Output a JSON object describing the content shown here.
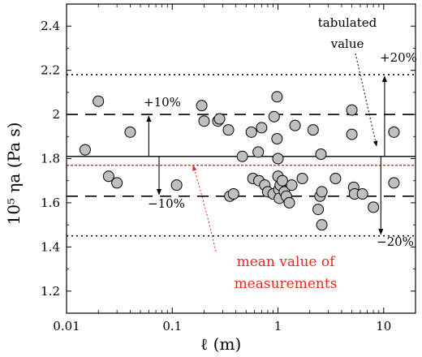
{
  "chart_data": {
    "type": "scatter",
    "xscale": "log",
    "xlim": [
      0.01,
      20
    ],
    "ylim": [
      1.1,
      2.5
    ],
    "xticks": [
      0.01,
      0.1,
      1,
      10
    ],
    "xtick_labels": [
      "0.01",
      "0.1",
      "1",
      "10"
    ],
    "yticks": [
      1.2,
      1.4,
      1.6,
      1.8,
      2.0,
      2.2,
      2.4
    ],
    "ytick_labels": [
      "1.2",
      "1.4",
      "1.6",
      "1.8",
      "2",
      "2.2",
      "2.4"
    ],
    "xlabel": "ℓ (m)",
    "ylabel": "10⁵ ηa (Pa s)",
    "grid": false,
    "tabulated_value": 1.81,
    "mean_value": 1.77,
    "band_10pct": [
      1.63,
      2.0
    ],
    "band_20pct": [
      1.45,
      2.18
    ],
    "colors": {
      "points": "#bfbfbf",
      "mean_line": "#e8281e",
      "lines": "#000000"
    },
    "points": [
      [
        0.015,
        1.84
      ],
      [
        0.02,
        2.06
      ],
      [
        0.025,
        1.72
      ],
      [
        0.03,
        1.69
      ],
      [
        0.04,
        1.92
      ],
      [
        0.11,
        1.68
      ],
      [
        0.19,
        2.04
      ],
      [
        0.2,
        1.97
      ],
      [
        0.27,
        1.97
      ],
      [
        0.28,
        1.98
      ],
      [
        0.34,
        1.93
      ],
      [
        0.35,
        1.63
      ],
      [
        0.38,
        1.64
      ],
      [
        0.46,
        1.81
      ],
      [
        0.56,
        1.92
      ],
      [
        0.58,
        1.71
      ],
      [
        0.65,
        1.83
      ],
      [
        0.66,
        1.7
      ],
      [
        0.7,
        1.94
      ],
      [
        0.75,
        1.68
      ],
      [
        0.8,
        1.65
      ],
      [
        0.9,
        1.64
      ],
      [
        0.92,
        1.99
      ],
      [
        0.98,
        2.08
      ],
      [
        0.98,
        1.89
      ],
      [
        1.0,
        1.8
      ],
      [
        1.0,
        1.72
      ],
      [
        1.02,
        1.66
      ],
      [
        1.03,
        1.62
      ],
      [
        1.05,
        1.68
      ],
      [
        1.1,
        1.7
      ],
      [
        1.15,
        1.65
      ],
      [
        1.2,
        1.63
      ],
      [
        1.28,
        1.6
      ],
      [
        1.35,
        1.68
      ],
      [
        1.45,
        1.95
      ],
      [
        1.7,
        1.71
      ],
      [
        2.15,
        1.93
      ],
      [
        2.4,
        1.57
      ],
      [
        2.5,
        1.63
      ],
      [
        2.55,
        1.82
      ],
      [
        2.6,
        1.65
      ],
      [
        2.6,
        1.5
      ],
      [
        3.5,
        1.71
      ],
      [
        5.0,
        1.91
      ],
      [
        5.0,
        2.02
      ],
      [
        5.2,
        1.67
      ],
      [
        5.3,
        1.64
      ],
      [
        6.3,
        1.64
      ],
      [
        8.0,
        1.58
      ],
      [
        12.5,
        1.69
      ],
      [
        12.5,
        1.92
      ]
    ],
    "annotations": {
      "tabulated_line1": "tabulated",
      "tabulated_line2": "value",
      "plus10": "+10%",
      "minus10": "−10%",
      "plus20": "+20%",
      "minus20": "−20%",
      "mean_line1": "mean value of",
      "mean_line2": "measurements"
    }
  }
}
